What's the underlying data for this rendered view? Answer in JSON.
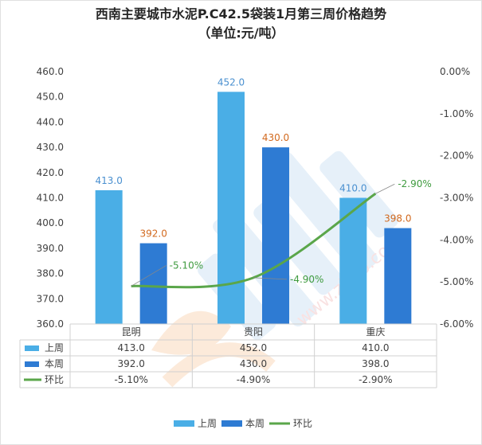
{
  "title": "西南主要城市水泥P.C42.5袋装1月第三周价格趋势",
  "subtitle": "（单位:元/吨）",
  "chart_data": {
    "type": "bar",
    "categories": [
      "昆明",
      "贵阳",
      "重庆"
    ],
    "series": [
      {
        "name": "上周",
        "kind": "bar",
        "axis": "left",
        "color": "#4aaee6",
        "values": [
          413.0,
          452.0,
          410.0
        ],
        "labels": [
          "413.0",
          "452.0",
          "410.0"
        ],
        "label_color": "#4a90d0"
      },
      {
        "name": "本周",
        "kind": "bar",
        "axis": "left",
        "color": "#2e7bd3",
        "values": [
          392.0,
          430.0,
          398.0
        ],
        "labels": [
          "392.0",
          "430.0",
          "398.0"
        ],
        "label_color": "#d2691e"
      },
      {
        "name": "环比",
        "kind": "line",
        "axis": "right",
        "color": "#5aa64a",
        "values": [
          -5.1,
          -4.9,
          -2.9
        ],
        "labels": [
          "-5.10%",
          "-4.90%",
          "-2.90%"
        ],
        "label_color": "#3f9b3f"
      }
    ],
    "left_axis": {
      "min": 360,
      "max": 460,
      "ticks": [
        "460.0",
        "450.0",
        "440.0",
        "430.0",
        "420.0",
        "410.0",
        "400.0",
        "390.0",
        "380.0",
        "370.0",
        "360.0"
      ]
    },
    "right_axis": {
      "min": -6.0,
      "max": 0.0,
      "ticks": [
        "0.00%",
        "-1.00%",
        "-2.00%",
        "-3.00%",
        "-4.00%",
        "-5.00%",
        "-6.00%"
      ]
    },
    "table": {
      "rows": [
        {
          "name": "上周",
          "cells": [
            "413.0",
            "452.0",
            "410.0"
          ]
        },
        {
          "name": "本周",
          "cells": [
            "392.0",
            "430.0",
            "398.0"
          ]
        },
        {
          "name": "环比",
          "cells": [
            "-5.10%",
            "-4.90%",
            "-2.90%"
          ]
        }
      ]
    },
    "legend": {
      "position": "bottom",
      "items": [
        "上周",
        "本周",
        "环比"
      ]
    },
    "watermark": "www.zitoo.com"
  }
}
